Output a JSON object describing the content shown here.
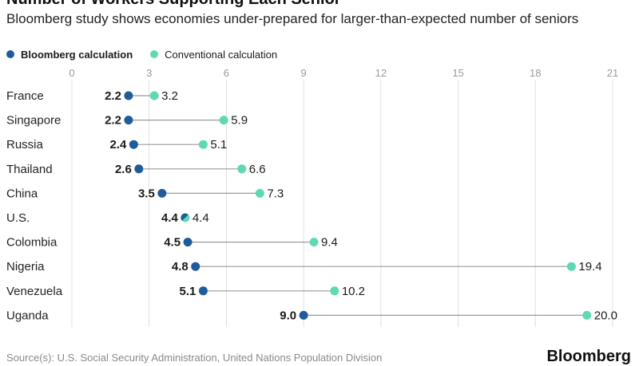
{
  "header": {
    "title": "Number of Workers Supporting Each Senior",
    "subtitle": "Bloomberg study shows economies under-prepared for larger-than-expected number of seniors"
  },
  "colors": {
    "bloomberg": "#1f5c99",
    "conventional": "#5fd9b5",
    "connector": "#9a9a9a",
    "grid": "#e0e0e0",
    "tick": "#9a9a9a"
  },
  "chart_data": {
    "type": "dot-range",
    "title": "Number of Workers Supporting Each Senior",
    "subtitle": "Bloomberg study shows economies under-prepared for larger-than-expected number of seniors",
    "xlim": [
      0,
      21
    ],
    "xticks": [
      0,
      3,
      6,
      9,
      12,
      15,
      18,
      21
    ],
    "legend_position": "top-left",
    "categories": [
      "France",
      "Singapore",
      "Russia",
      "Thailand",
      "China",
      "U.S.",
      "Colombia",
      "Nigeria",
      "Venezuela",
      "Uganda"
    ],
    "series": [
      {
        "name": "Bloomberg calculation",
        "values": [
          2.2,
          2.2,
          2.4,
          2.6,
          3.5,
          4.4,
          4.5,
          4.8,
          5.1,
          9.0
        ]
      },
      {
        "name": "Conventional calculation",
        "values": [
          3.2,
          5.9,
          5.1,
          6.6,
          7.3,
          4.4,
          9.4,
          19.4,
          10.2,
          20.0
        ]
      }
    ]
  },
  "footer": {
    "source": "Source(s): U.S. Social Security Administration, United Nations Population Division",
    "brand": "Bloomberg"
  }
}
